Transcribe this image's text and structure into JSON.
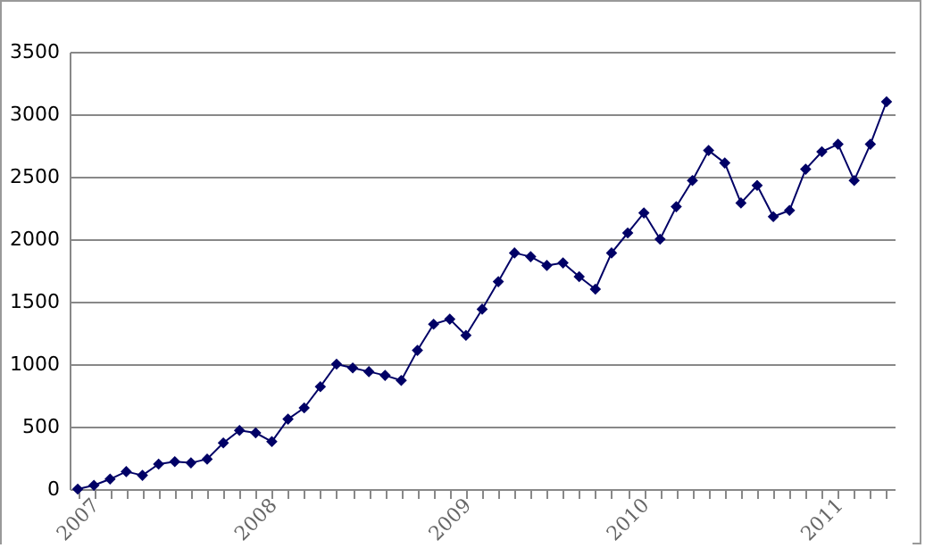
{
  "chart_data": {
    "type": "line",
    "categories": [
      "2007",
      null,
      null,
      null,
      null,
      null,
      null,
      null,
      null,
      null,
      null,
      "2008",
      null,
      null,
      null,
      null,
      null,
      null,
      null,
      null,
      null,
      null,
      null,
      "2009",
      null,
      null,
      null,
      null,
      null,
      null,
      null,
      null,
      null,
      null,
      "2010",
      null,
      null,
      null,
      null,
      null,
      null,
      null,
      null,
      null,
      null,
      null,
      "2011",
      null,
      null,
      null,
      null
    ],
    "series": [
      {
        "color": "#000066",
        "values": [
          0,
          30,
          80,
          140,
          110,
          200,
          220,
          210,
          240,
          370,
          470,
          450,
          380,
          560,
          650,
          820,
          1000,
          970,
          940,
          910,
          870,
          1110,
          1320,
          1360,
          1230,
          1440,
          1660,
          1890,
          1860,
          1790,
          1810,
          1700,
          1600,
          1890,
          2050,
          2210,
          2000,
          2260,
          2470,
          2710,
          2610,
          2290,
          2430,
          2180,
          2230,
          2560,
          2700,
          2760,
          2470,
          2760,
          3100
        ]
      }
    ],
    "ylim": [
      0,
      3500
    ],
    "yticks": [
      0,
      500,
      1000,
      1500,
      2000,
      2500,
      3000,
      3500
    ],
    "grid": "y",
    "legend": false,
    "marker": "diamond",
    "line_style": "solid"
  }
}
